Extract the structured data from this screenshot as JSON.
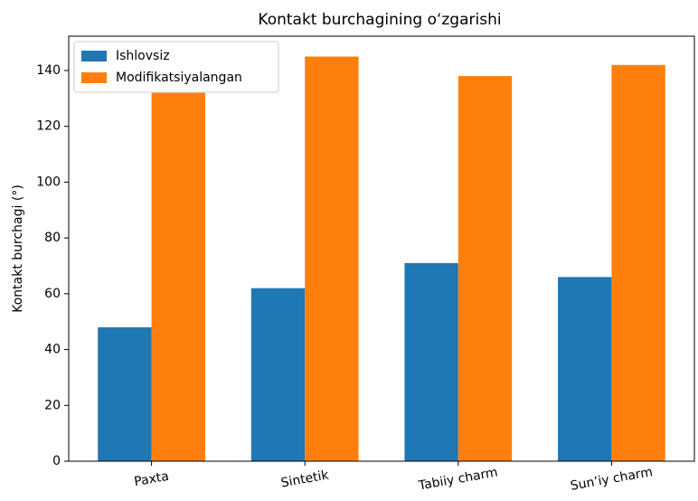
{
  "chart_data": {
    "type": "bar",
    "title": "Kontakt burchagining oʻzgarishi",
    "ylabel": "Kontakt burchagi (°)",
    "categories": [
      "Paxta",
      "Sintetik",
      "Tabiiy charm",
      "Sun’iy charm"
    ],
    "series": [
      {
        "name": "Ishlovsiz",
        "color": "#1f77b4",
        "values": [
          48,
          62,
          71,
          66
        ]
      },
      {
        "name": "Modifikatsiyalangan",
        "color": "#ff7f0e",
        "values": [
          132,
          145,
          138,
          142
        ]
      }
    ],
    "ylim": [
      0,
      152.3
    ],
    "yticks": [
      0,
      20,
      40,
      60,
      80,
      100,
      120,
      140
    ],
    "legend": "upper left"
  }
}
